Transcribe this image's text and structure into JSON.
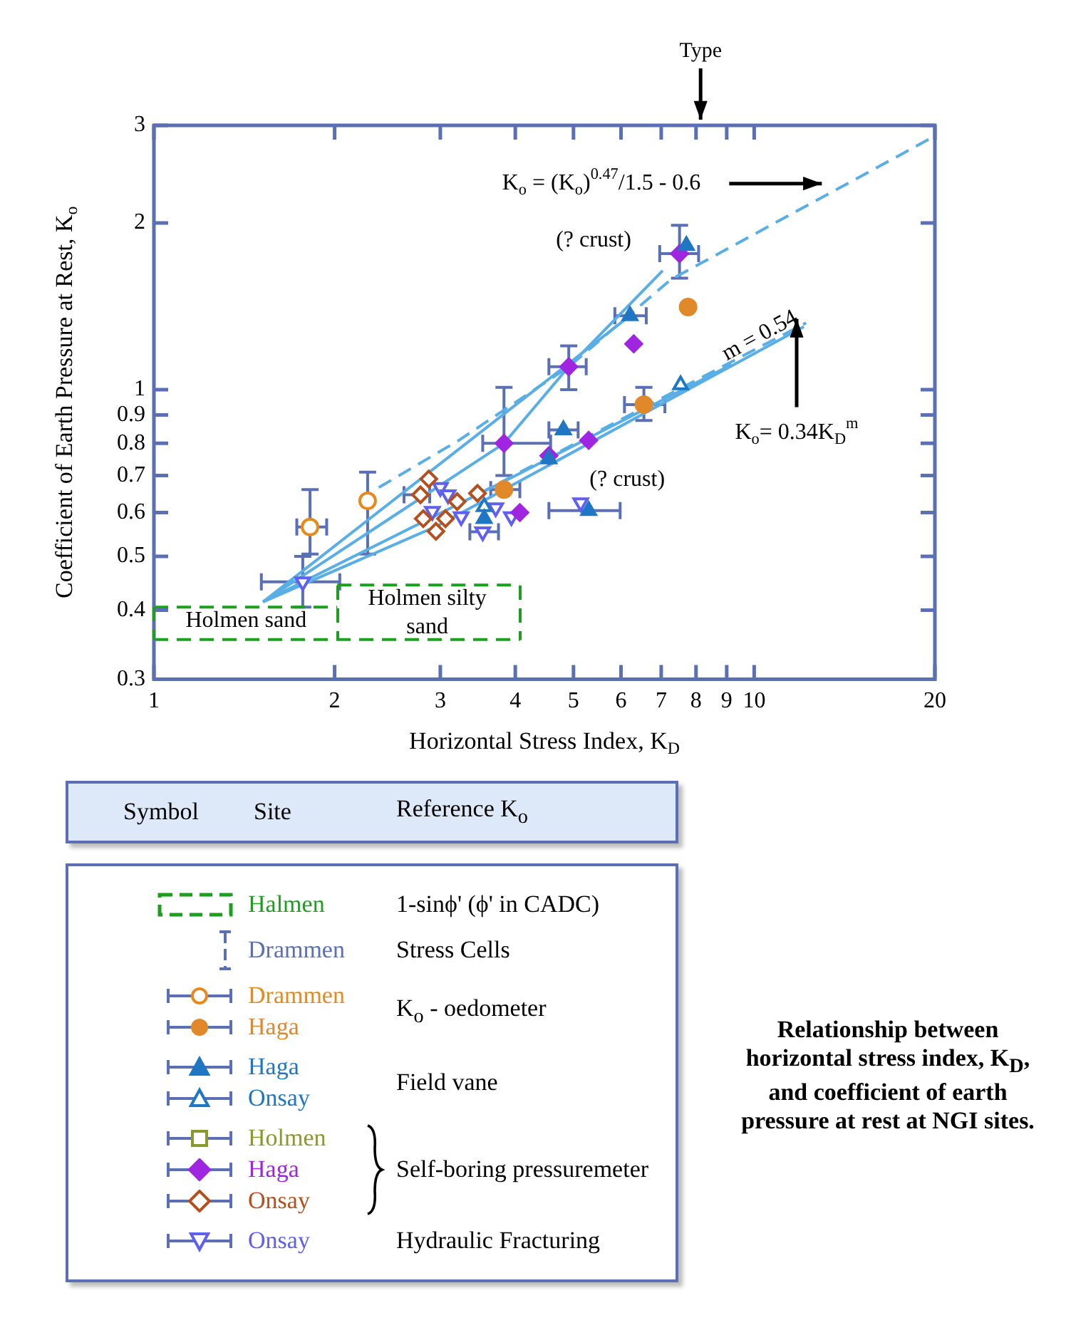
{
  "chart_data": {
    "type": "scatter",
    "title": "Relationship between horizontal stress index, K$_{D}$, and coefficient of earth pressure at rest at NGI sites.",
    "xlabel": "Horizontal Stress Index, K$_{D}$",
    "ylabel": "Coefficient of Earth Pressure at Rest, K$_{o}$",
    "log": "xy",
    "xlim": [
      1,
      20
    ],
    "ylim": [
      0.3,
      3
    ],
    "xticks": [
      1,
      2,
      3,
      4,
      5,
      6,
      7,
      8,
      9,
      10,
      20
    ],
    "yticks": [
      0.3,
      0.4,
      0.5,
      0.6,
      0.7,
      0.8,
      0.9,
      1,
      2,
      3
    ],
    "legend": "bottom",
    "series": [
      {
        "name": "Halmen",
        "type": "line",
        "line_style": "dashed",
        "marker": "none",
        "color": "#1e9e1e",
        "x": [
          1,
          2.02
        ],
        "values": [
          0.405,
          0.405
        ]
      },
      {
        "type": "line",
        "line_style": "dashed",
        "marker": "none",
        "color": "#1e9e1e",
        "x": [
          1,
          4.07
        ],
        "values": [
          0.354,
          0.354
        ]
      },
      {
        "type": "line",
        "line_style": "dashed",
        "marker": "none",
        "color": "#1e9e1e",
        "x": [
          2.02,
          4.07
        ],
        "values": [
          0.444,
          0.444
        ]
      },
      {
        "name": "Drammen",
        "type": "scatter",
        "marker": "none",
        "color": "#5b6fb5"
      },
      {
        "name": "Drammen",
        "type": "scatter",
        "marker": "circle",
        "color": "#e8891c",
        "x": [
          1.82,
          2.27
        ],
        "values": [
          0.565,
          0.63
        ],
        "xerrors": [
          [
            1.73,
            1.94
          ],
          null
        ],
        "errors": [
          [
            0.505,
            0.66
          ],
          [
            0.505,
            0.71
          ]
        ]
      },
      {
        "name": "Haga",
        "type": "scatter",
        "marker": "circle",
        "color": "#e0882a",
        "x": [
          3.83,
          6.55,
          7.76
        ],
        "values": [
          0.66,
          0.94,
          1.41
        ],
        "xerrors": [
          [
            3.64,
            4.07
          ],
          [
            6.08,
            7.1
          ],
          null
        ],
        "errors": [
          null,
          [
            0.88,
            1.01
          ],
          null
        ]
      },
      {
        "name": "Haga",
        "type": "scatter",
        "marker": "triangle",
        "color": "#1f77c4",
        "x": [
          3.55,
          4.55,
          4.81,
          5.3,
          6.21,
          7.71
        ],
        "values": [
          0.585,
          0.75,
          0.846,
          0.605,
          1.36,
          1.82
        ],
        "xerrors": [
          null,
          null,
          [
            4.55,
            5.09
          ],
          [
            4.55,
            5.98
          ],
          [
            5.86,
            6.61
          ],
          null
        ]
      },
      {
        "name": "Onsay",
        "type": "scatter",
        "marker": "triangle",
        "color": "#1f77c4",
        "x": [
          3.55,
          7.54
        ],
        "values": [
          0.615,
          1.02
        ]
      },
      {
        "name": "Holmen",
        "type": "scatter",
        "marker": "square",
        "color": "#8a9a2a"
      },
      {
        "name": "Haga",
        "type": "scatter",
        "marker": "diamond",
        "color": "#a025e0",
        "x": [
          3.83,
          4.07,
          4.55,
          4.91,
          5.3,
          6.3,
          7.51
        ],
        "values": [
          0.8,
          0.6,
          0.76,
          1.1,
          0.81,
          1.21,
          1.76
        ],
        "xerrors": [
          [
            3.53,
            4.58
          ],
          null,
          null,
          [
            4.55,
            5.25
          ],
          null,
          null,
          [
            6.96,
            8.08
          ]
        ],
        "errors": [
          [
            0.7,
            1.01
          ],
          null,
          null,
          [
            1.0,
            1.2
          ],
          null,
          null,
          [
            1.59,
            1.98
          ]
        ]
      },
      {
        "name": "Onsay",
        "type": "scatter",
        "marker": "diamond",
        "color": "#b5501e",
        "x": [
          2.78,
          2.81,
          2.87,
          2.95,
          3.06,
          3.2,
          3.46
        ],
        "values": [
          0.646,
          0.585,
          0.69,
          0.555,
          0.585,
          0.628,
          0.65
        ],
        "xerrors": [
          [
            2.61,
            2.88
          ],
          null,
          null,
          null,
          null,
          null,
          null
        ]
      },
      {
        "name": "Onsay",
        "type": "scatter",
        "marker": "triangle",
        "color": "#6060f0",
        "x": [
          1.77,
          2.91,
          3.0,
          3.09,
          3.25,
          3.53,
          3.71,
          3.94,
          5.14
        ],
        "values": [
          0.45,
          0.603,
          0.666,
          0.646,
          0.59,
          0.554,
          0.612,
          0.59,
          0.625
        ],
        "xerrors": [
          [
            1.51,
            2.04
          ],
          null,
          null,
          null,
          null,
          [
            3.36,
            3.75
          ],
          null,
          null,
          null
        ],
        "errors": [
          [
            0.405,
            0.5
          ],
          null,
          null,
          null,
          null,
          null,
          null,
          null,
          null
        ]
      },
      {
        "type": "line",
        "line_style": "solid",
        "marker": "none",
        "color": "#5aaee6",
        "x": [
          1.52,
          3.83,
          4.91,
          7.04
        ],
        "values": [
          0.414,
          0.8,
          1.1,
          1.64
        ]
      },
      {
        "type": "line",
        "line_style": "solid",
        "marker": "none",
        "color": "#5aaee6",
        "x": [
          1.52,
          6.21
        ],
        "values": [
          0.414,
          1.36
        ]
      },
      {
        "type": "line",
        "line_style": "solid",
        "marker": "none",
        "color": "#5aaee6",
        "x": [
          1.52,
          4.11,
          9.17
        ],
        "values": [
          0.414,
          0.71,
          1.11
        ]
      },
      {
        "type": "line",
        "line_style": "solid",
        "marker": "none",
        "color": "#5aaee6",
        "x": [
          1.52,
          2.97,
          12.1
        ],
        "values": [
          0.414,
          0.568,
          1.3
        ]
      },
      {
        "type": "line",
        "line_style": "dashed",
        "marker": "none",
        "color": "#5aaee6",
        "x": [
          2.37,
          3.22,
          4.91,
          7.26,
          20
        ],
        "values": [
          0.666,
          0.81,
          1.1,
          1.58,
          2.87
        ]
      },
      {
        "type": "line",
        "line_style": "dashed",
        "marker": "none",
        "color": "#5aaee6",
        "x": [
          3.49,
          12.2
        ],
        "values": [
          0.65,
          1.32
        ]
      }
    ],
    "annotations": [
      "Type",
      "(? crust)",
      "(? crust)",
      "K$_{o}$ = (K$_{o}$)$^{0.47}$/1.5 - 0.6",
      "m = 0.54",
      "K$_{o}$= 0.34K$_{D}$$^{m}$",
      "Holmen sand",
      "Holmen silty sand",
      "Symbol",
      "Site",
      "Reference K$_{o}$",
      "1-sinϕ' (ϕ' in CADC)",
      "Stress Cells",
      "K$_{o}$ - oedometer",
      "Field vane",
      "Self-boring pressuremeter",
      "Hydraulic Fracturing"
    ]
  }
}
